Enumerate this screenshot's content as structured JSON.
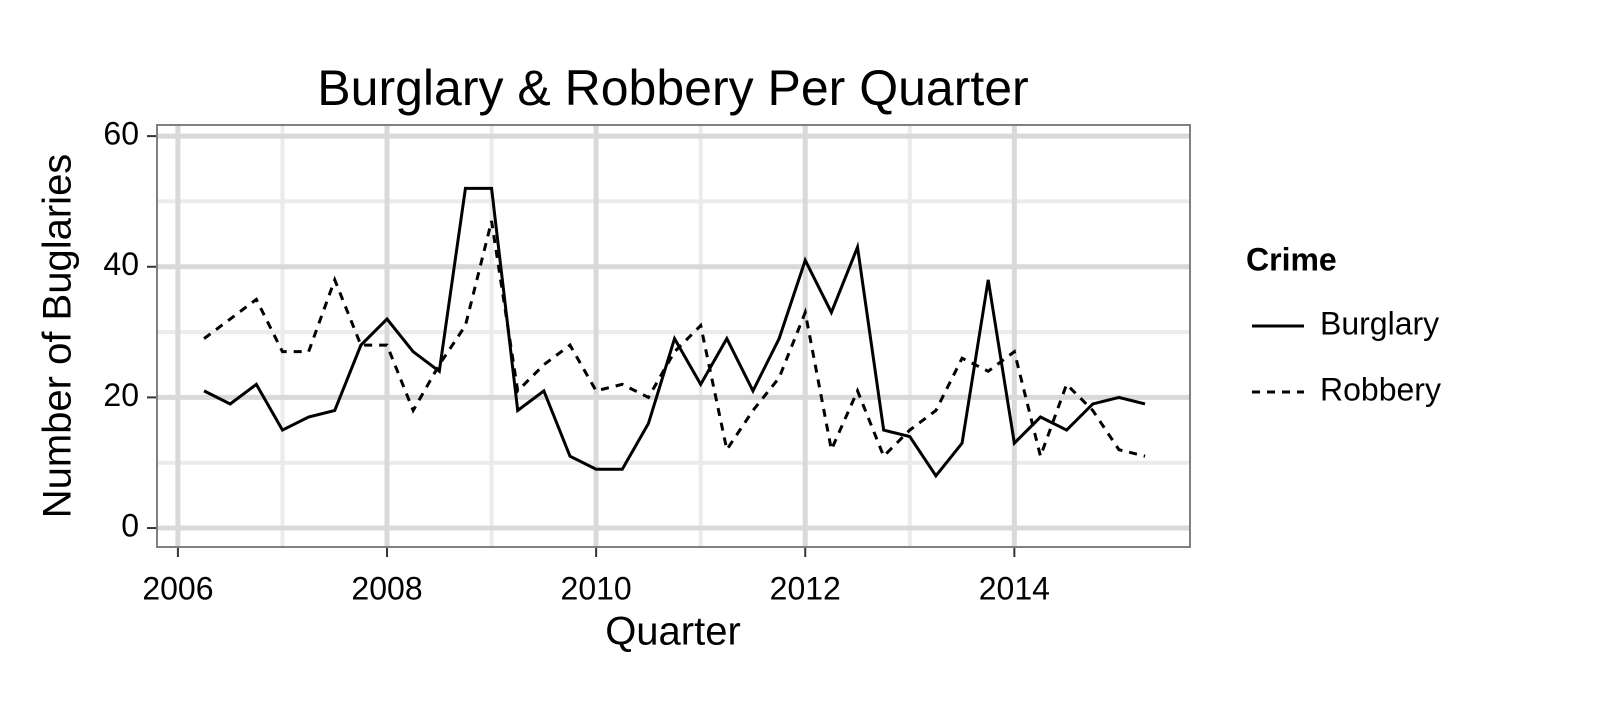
{
  "chart_data": {
    "type": "line",
    "title": "Burglary & Robbery Per Quarter",
    "x_label": "Quarter",
    "y_label": "Number of Buglaries",
    "x": [
      2006.25,
      2006.5,
      2006.75,
      2007,
      2007.25,
      2007.5,
      2007.75,
      2008,
      2008.25,
      2008.5,
      2008.75,
      2009,
      2009.25,
      2009.5,
      2009.75,
      2010,
      2010.25,
      2010.5,
      2010.75,
      2011,
      2011.25,
      2011.5,
      2011.75,
      2012,
      2012.25,
      2012.5,
      2012.75,
      2013,
      2013.25,
      2013.5,
      2013.75,
      2014,
      2014.25,
      2014.5,
      2014.75,
      2015,
      2015.25
    ],
    "series": [
      {
        "name": "Burglary",
        "color": "#000000",
        "linetype": "solid",
        "values": [
          21,
          19,
          22,
          15,
          17,
          18,
          28,
          32,
          27,
          24,
          52,
          52,
          18,
          21,
          11,
          9,
          9,
          16,
          29,
          22,
          29,
          21,
          29,
          41,
          33,
          43,
          15,
          14,
          8,
          13,
          38,
          13,
          17,
          15,
          19,
          20,
          19
        ]
      },
      {
        "name": "Robbery",
        "color": "#000000",
        "linetype": "dashed",
        "values": [
          29,
          32,
          35,
          27,
          27,
          38,
          28,
          28,
          18,
          25,
          31,
          47,
          21,
          25,
          28,
          21,
          22,
          20,
          27,
          31,
          12,
          18,
          23,
          33,
          12,
          21,
          11,
          15,
          18,
          26,
          24,
          27,
          11,
          22,
          18,
          12,
          11
        ]
      }
    ],
    "xlim": [
      2005.8,
      2015.68
    ],
    "xticks": [
      2006,
      2008,
      2010,
      2012,
      2014
    ],
    "ylim": [
      -2.9,
      61.7
    ],
    "yticks": [
      0,
      20,
      40,
      60
    ],
    "grid": true,
    "legend_title": "Crime",
    "legend_position": "right"
  }
}
